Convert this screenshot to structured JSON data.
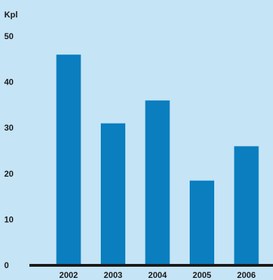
{
  "chart_data": {
    "type": "bar",
    "ylabel": "Kpl",
    "categories": [
      "2002",
      "2003",
      "2004",
      "2005",
      "2006"
    ],
    "values": [
      46,
      31,
      36,
      18.5,
      26
    ],
    "ylim": [
      0,
      50
    ],
    "yticks": [
      "0",
      "10",
      "20",
      "30",
      "40",
      "50"
    ],
    "grid": false,
    "colors": {
      "background": "#c5e4f6",
      "bar": "#0a7ebf",
      "axis": "#1a1a1a",
      "text": "#1a1a1a"
    }
  }
}
